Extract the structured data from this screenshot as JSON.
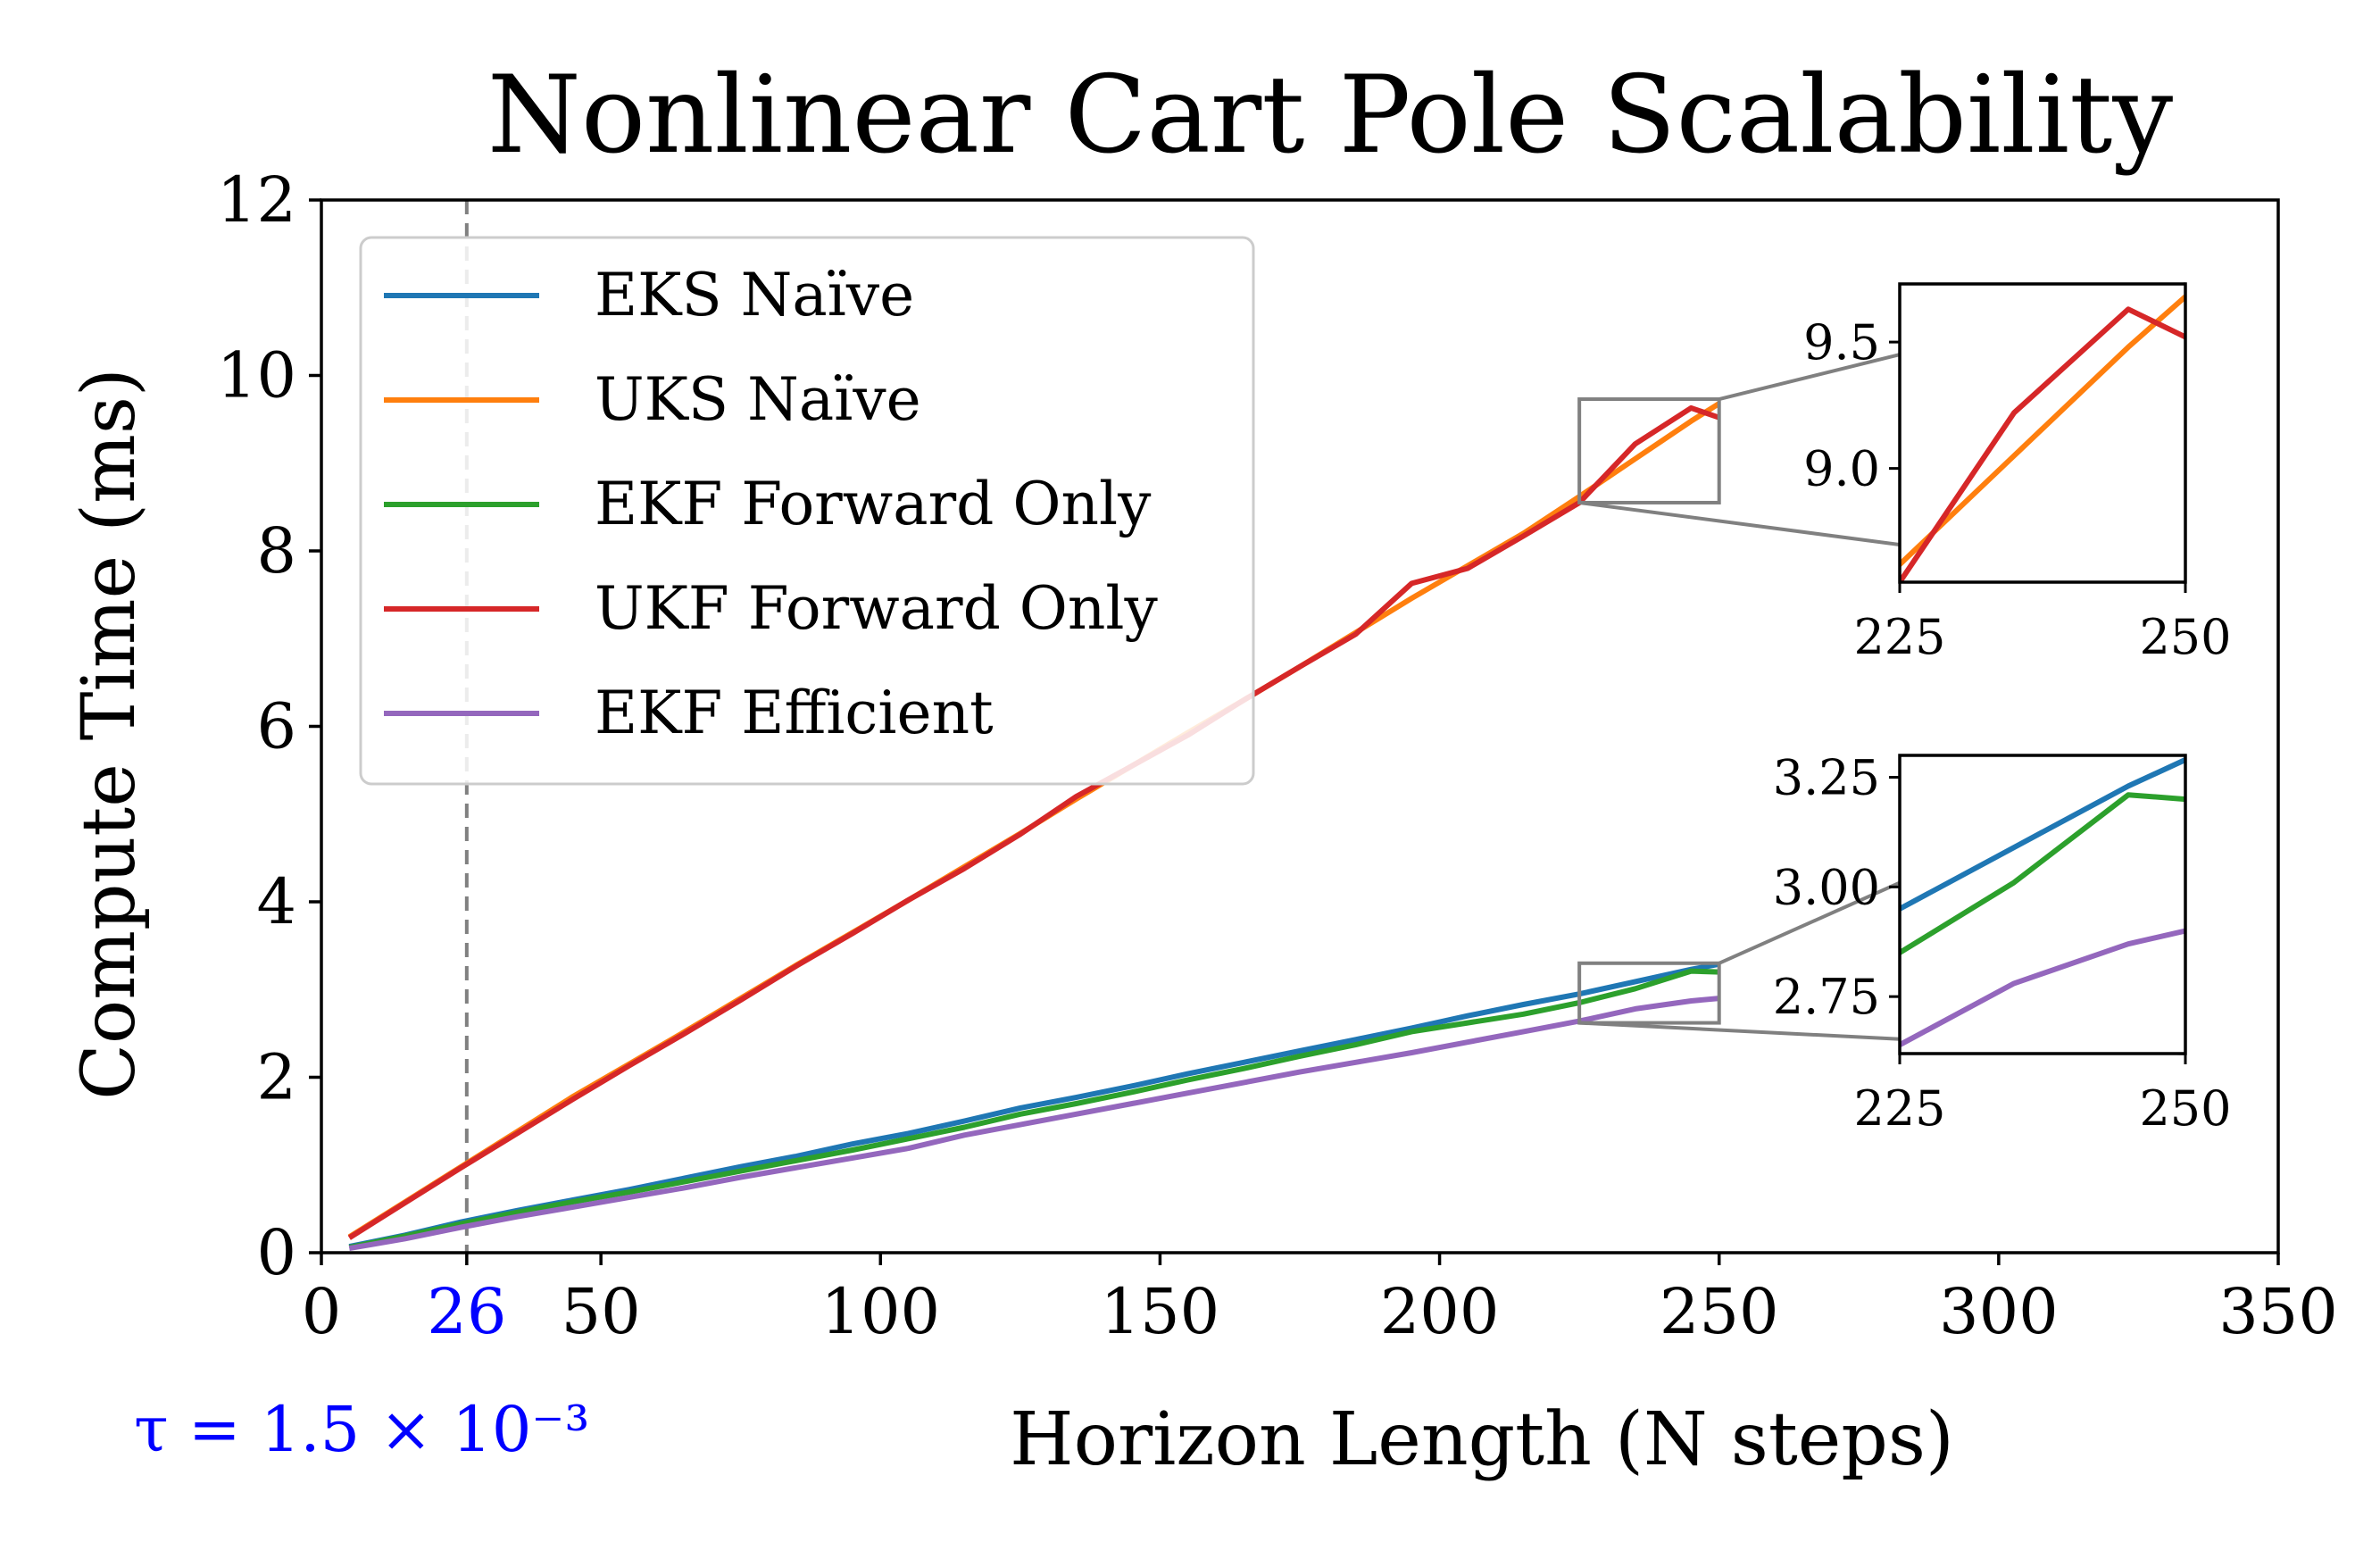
{
  "chart_data": {
    "type": "line",
    "title": "Nonlinear Cart Pole Scalability",
    "xlabel": "Horizon Length (N steps)",
    "ylabel": "Compute Time (ms)",
    "xlim": [
      0,
      350
    ],
    "ylim": [
      0,
      12
    ],
    "xticks": [
      0,
      50,
      100,
      150,
      200,
      250,
      300,
      350
    ],
    "yticks": [
      0,
      2,
      4,
      6,
      8,
      10,
      12
    ],
    "grid": false,
    "legend_position": "upper-left",
    "highlight": {
      "x": 26,
      "tick_label": "26",
      "annotation": "τ = 1.5 × 10⁻³",
      "color": "#0000ff",
      "line_color": "#808080"
    },
    "series": [
      {
        "name": "EKS Naïve",
        "color": "#1f77b4",
        "x": [
          5,
          15,
          25,
          35,
          45,
          55,
          65,
          75,
          85,
          95,
          105,
          115,
          125,
          135,
          145,
          155,
          165,
          175,
          185,
          195,
          205,
          215,
          225,
          235,
          245,
          250
        ],
        "values": [
          0.07,
          0.2,
          0.35,
          0.48,
          0.6,
          0.72,
          0.85,
          0.98,
          1.1,
          1.24,
          1.36,
          1.5,
          1.65,
          1.77,
          1.9,
          2.04,
          2.17,
          2.3,
          2.43,
          2.56,
          2.7,
          2.83,
          2.95,
          3.09,
          3.23,
          3.29
        ]
      },
      {
        "name": "UKS Naïve",
        "color": "#ff7f0e",
        "x": [
          5,
          15,
          25,
          35,
          45,
          55,
          65,
          75,
          85,
          95,
          105,
          115,
          125,
          135,
          145,
          155,
          165,
          175,
          185,
          195,
          205,
          215,
          225,
          235,
          245,
          250
        ],
        "values": [
          0.18,
          0.58,
          0.98,
          1.38,
          1.78,
          2.15,
          2.52,
          2.9,
          3.28,
          3.65,
          4.02,
          4.4,
          4.78,
          5.17,
          5.55,
          5.93,
          6.3,
          6.68,
          7.07,
          7.46,
          7.83,
          8.2,
          8.62,
          9.05,
          9.48,
          9.68
        ]
      },
      {
        "name": "EKF Forward Only",
        "color": "#2ca02c",
        "x": [
          5,
          15,
          25,
          35,
          45,
          55,
          65,
          75,
          85,
          95,
          105,
          115,
          125,
          135,
          145,
          155,
          165,
          175,
          185,
          195,
          205,
          215,
          225,
          235,
          245,
          250
        ],
        "values": [
          0.06,
          0.19,
          0.33,
          0.46,
          0.58,
          0.69,
          0.81,
          0.93,
          1.05,
          1.17,
          1.3,
          1.43,
          1.58,
          1.7,
          1.83,
          1.97,
          2.1,
          2.24,
          2.37,
          2.52,
          2.62,
          2.72,
          2.85,
          3.01,
          3.21,
          3.2
        ]
      },
      {
        "name": "UKF Forward Only",
        "color": "#d62728",
        "x": [
          5,
          15,
          25,
          35,
          45,
          55,
          65,
          75,
          85,
          95,
          105,
          115,
          125,
          135,
          145,
          155,
          165,
          175,
          185,
          195,
          205,
          215,
          225,
          235,
          245,
          250
        ],
        "values": [
          0.17,
          0.57,
          0.97,
          1.36,
          1.75,
          2.13,
          2.5,
          2.88,
          3.27,
          3.64,
          4.02,
          4.38,
          4.77,
          5.2,
          5.55,
          5.9,
          6.3,
          6.68,
          7.05,
          7.63,
          7.8,
          8.17,
          8.55,
          9.22,
          9.63,
          9.52
        ]
      },
      {
        "name": "EKF Efficient",
        "color": "#9467bd",
        "x": [
          5,
          15,
          25,
          35,
          45,
          55,
          65,
          75,
          85,
          95,
          105,
          115,
          125,
          135,
          145,
          155,
          165,
          175,
          185,
          195,
          205,
          215,
          225,
          235,
          245,
          250
        ],
        "values": [
          0.05,
          0.16,
          0.29,
          0.41,
          0.52,
          0.63,
          0.74,
          0.86,
          0.97,
          1.08,
          1.19,
          1.34,
          1.46,
          1.58,
          1.7,
          1.82,
          1.94,
          2.06,
          2.17,
          2.28,
          2.4,
          2.52,
          2.64,
          2.78,
          2.87,
          2.9
        ]
      }
    ],
    "insets": [
      {
        "name": "upper",
        "position": "upper-right",
        "xlim": [
          225,
          250
        ],
        "ylim": [
          8.55,
          9.73
        ],
        "xticks": [
          225,
          250
        ],
        "yticks": [
          9.0,
          9.5
        ],
        "ytick_labels": [
          "9.0",
          "9.5"
        ],
        "series": [
          "UKS Naïve",
          "UKF Forward Only"
        ]
      },
      {
        "name": "lower",
        "position": "lower-right",
        "xlim": [
          225,
          250
        ],
        "ylim": [
          2.62,
          3.3
        ],
        "xticks": [
          225,
          250
        ],
        "yticks": [
          2.75,
          3.0,
          3.25
        ],
        "ytick_labels": [
          "2.75",
          "3.00",
          "3.25"
        ],
        "series": [
          "EKS Naïve",
          "EKF Forward Only",
          "EKF Efficient"
        ]
      }
    ]
  }
}
